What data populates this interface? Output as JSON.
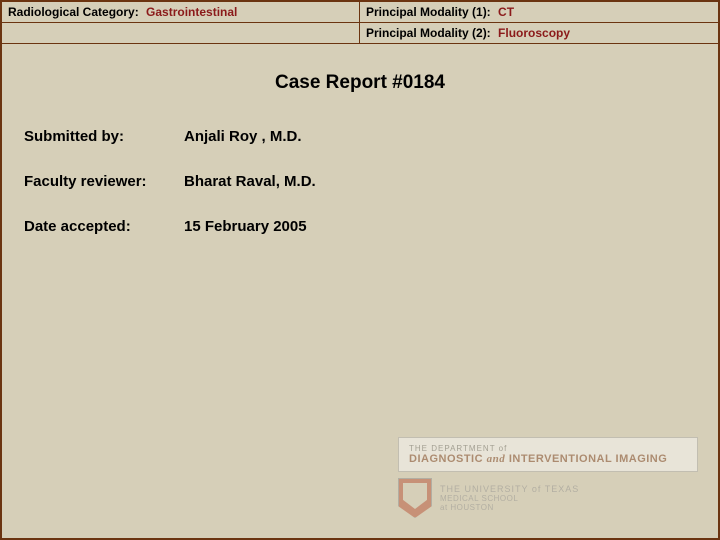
{
  "header": {
    "category_label": "Radiological Category:",
    "category_value": "Gastrointestinal",
    "modality1_label": "Principal Modality (1):",
    "modality1_value": "CT",
    "modality2_label": "Principal Modality (2):",
    "modality2_value": "Fluoroscopy"
  },
  "title": "Case Report #0184",
  "meta": {
    "submitted_label": "Submitted by:",
    "submitted_value": "Anjali Roy , M.D.",
    "reviewer_label": "Faculty reviewer:",
    "reviewer_value": "Bharat Raval, M.D.",
    "date_label": "Date accepted:",
    "date_value": "15 February 2005"
  },
  "logo": {
    "dept_small": "THE DEPARTMENT of",
    "dept_big_1": "DIAGNOSTIC",
    "dept_big_and": "and",
    "dept_big_2": "INTERVENTIONAL IMAGING",
    "ut_line1": "THE UNIVERSITY of TEXAS",
    "ut_line2a": "MEDICAL SCHOOL",
    "ut_line2b": "at HOUSTON"
  },
  "colors": {
    "border": "#6b3410",
    "background": "#d6cfb8",
    "value_text": "#8b1a1a"
  }
}
